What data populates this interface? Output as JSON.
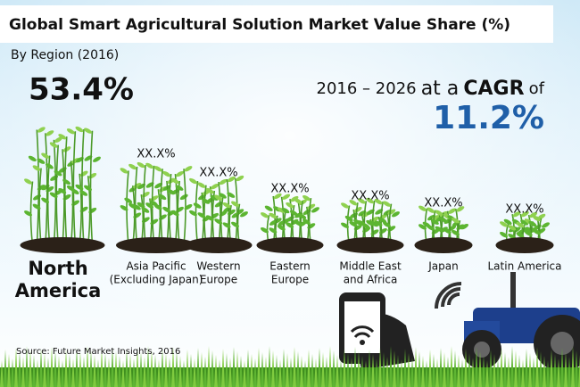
{
  "header": {
    "title": "Global Smart Agricultural Solution Market Value Share (%)",
    "subtitle": "By Region (2016)"
  },
  "highlight": "53.4%",
  "cagr": {
    "period": "2016 – 2026",
    "connector": "at a",
    "label": "CAGR",
    "of": "of",
    "value": "11.2%"
  },
  "regions": [
    {
      "label": [
        "North",
        "America"
      ],
      "value": null
    },
    {
      "label": [
        "Asia Pacific",
        "(Excluding Japan)"
      ],
      "value": "XX.X%"
    },
    {
      "label": [
        "Western",
        "Europe"
      ],
      "value": "XX.X%"
    },
    {
      "label": [
        "Eastern",
        "Europe"
      ],
      "value": "XX.X%"
    },
    {
      "label": [
        "Middle East",
        "and Africa"
      ],
      "value": "XX.X%"
    },
    {
      "label": [
        "Japan"
      ],
      "value": "XX.X%"
    },
    {
      "label": [
        "Latin America"
      ],
      "value": "XX.X%"
    }
  ],
  "source": "Source: Future Market Insights, 2016"
}
